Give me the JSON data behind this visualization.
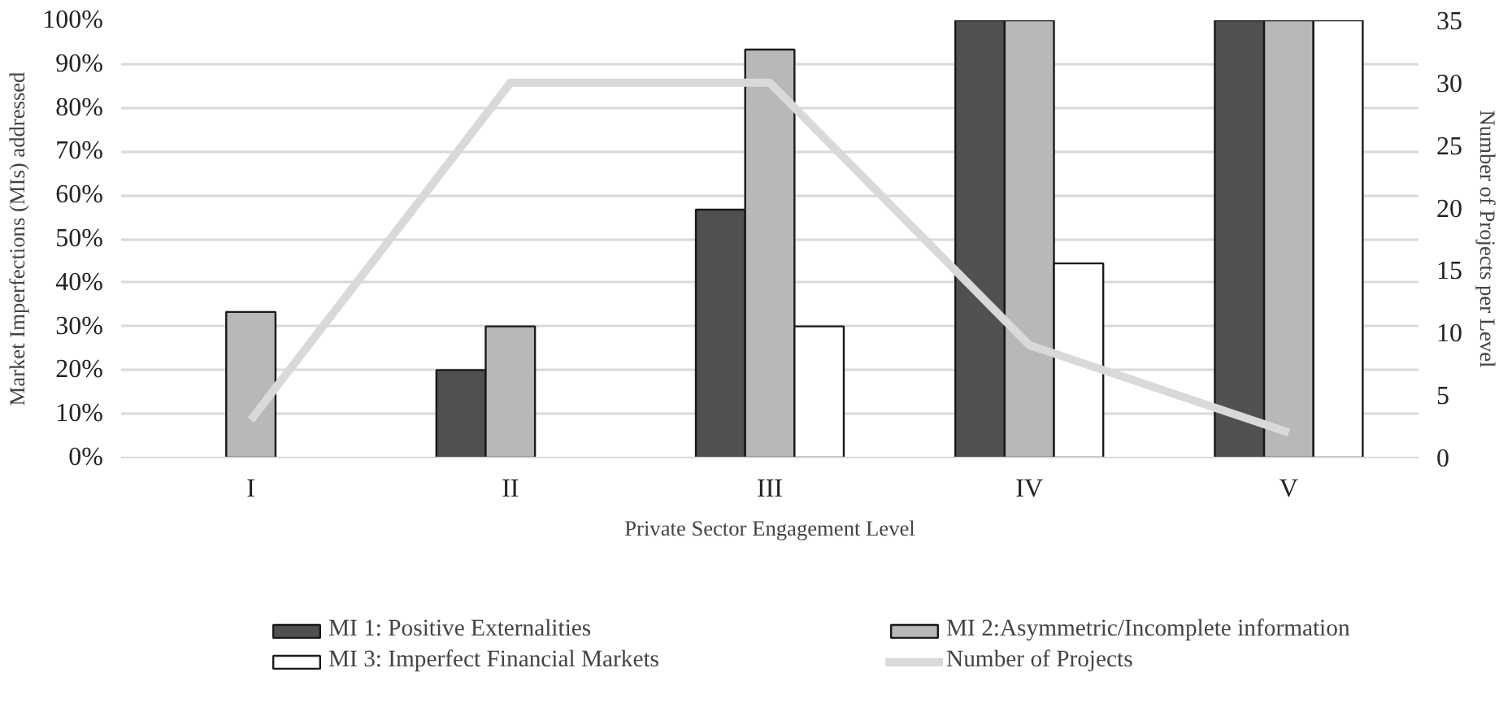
{
  "chart_data": {
    "type": "bar",
    "xlabel": "Private Sector Engagement Level",
    "ylabel": "Market Imperfections (MIs) addressed",
    "y2label": "Number of Projects per Level",
    "categories": [
      "I",
      "II",
      "III",
      "IV",
      "V"
    ],
    "series": [
      {
        "name": "MI 1: Positive Externalities",
        "color": "#505050",
        "values": [
          null,
          20,
          56.7,
          100,
          100
        ]
      },
      {
        "name": "MI 2:Asymmetric/Incomplete information",
        "color": "#b8b8b8",
        "values": [
          33.3,
          30,
          93.3,
          100,
          100
        ]
      },
      {
        "name": "MI 3: Imperfect Financial Markets",
        "color": "#ffffff",
        "values": [
          null,
          null,
          30,
          44.4,
          100
        ]
      },
      {
        "name": "Number of Projects",
        "type": "line",
        "axis": "y2",
        "color": "#d9d9d9",
        "values": [
          3,
          30,
          30,
          9,
          2
        ]
      }
    ],
    "ylim": [
      0,
      100
    ],
    "yticks": [
      {
        "value": 0,
        "label": "0%"
      },
      {
        "value": 10,
        "label": "10%"
      },
      {
        "value": 20,
        "label": "20%"
      },
      {
        "value": 30,
        "label": "30%"
      },
      {
        "value": 40,
        "label": "40%"
      },
      {
        "value": 50,
        "label": "50%"
      },
      {
        "value": 60,
        "label": "60%"
      },
      {
        "value": 70,
        "label": "70%"
      },
      {
        "value": 80,
        "label": "80%"
      },
      {
        "value": 90,
        "label": "90%"
      },
      {
        "value": 100,
        "label": "100%"
      }
    ],
    "y2lim": [
      0,
      35
    ],
    "y2ticks": [
      0,
      5,
      10,
      15,
      20,
      25,
      30,
      35
    ],
    "grid": "y",
    "legend": "bottom"
  }
}
